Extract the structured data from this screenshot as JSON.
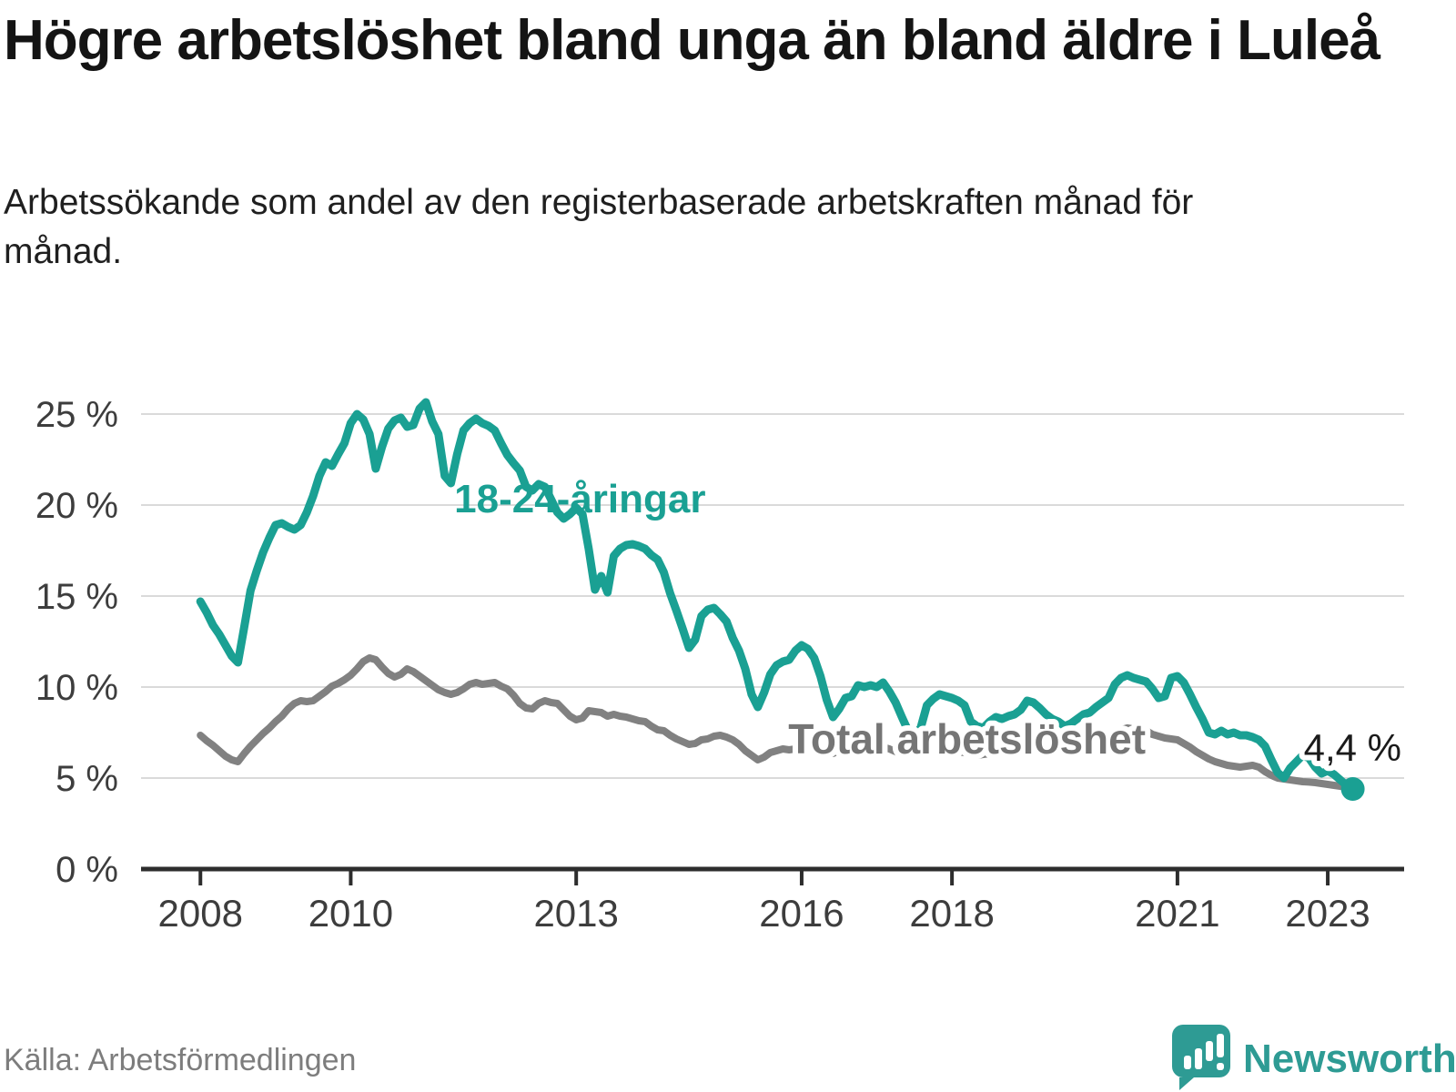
{
  "header": {
    "title": "Högre arbetslöshet bland unga än bland äldre i Luleå",
    "subtitle": "Arbetssökande som andel av den registerbaserade arbetskraften månad för månad."
  },
  "footer": {
    "source": "Källa: Arbetsförmedlingen",
    "brand": "Newsworthy"
  },
  "colors": {
    "youth_line": "#1AA093",
    "total_line": "#818181",
    "total_label": "#757575",
    "annotation_dark": "#1A1A1A",
    "grid": "#DADADA",
    "axis": "#2D2D2D",
    "tick_text": "#3D3D3D",
    "brand_teal": "#2E9B94",
    "background": "#FFFFFF"
  },
  "chart_data": {
    "type": "line",
    "title": "Högre arbetslöshet bland unga än bland äldre i Luleå",
    "xlabel": "",
    "ylabel": "Arbetssökande som andel av den registerbaserade arbetskraften",
    "unit": "%",
    "frequency": "monthly",
    "start": "2008-01",
    "end": "2023-05",
    "grid": true,
    "x_axis": {
      "range": [
        2007.21,
        2023.98
      ],
      "tick_years": [
        2008,
        2010,
        2013,
        2016,
        2018,
        2021,
        2023
      ],
      "tick_labels": [
        "2008",
        "2010",
        "2013",
        "2016",
        "2018",
        "2021",
        "2023"
      ]
    },
    "y_axis": {
      "range": [
        0,
        26.25
      ],
      "ticks": [
        0,
        5,
        10,
        15,
        20,
        25
      ],
      "tick_labels": [
        "0 %",
        "5 %",
        "10 %",
        "15 %",
        "20 %",
        "25 %"
      ]
    },
    "series": [
      {
        "name": "Total arbetslöshet",
        "color": "#818181",
        "stroke_width": 8,
        "values": [
          7.35,
          7.05,
          6.8,
          6.5,
          6.2,
          6.0,
          5.9,
          6.35,
          6.75,
          7.1,
          7.45,
          7.75,
          8.1,
          8.4,
          8.8,
          9.1,
          9.25,
          9.2,
          9.25,
          9.5,
          9.75,
          10.05,
          10.2,
          10.4,
          10.65,
          11.0,
          11.4,
          11.6,
          11.5,
          11.1,
          10.75,
          10.55,
          10.7,
          11.0,
          10.85,
          10.6,
          10.35,
          10.1,
          9.85,
          9.7,
          9.6,
          9.7,
          9.9,
          10.15,
          10.25,
          10.15,
          10.2,
          10.25,
          10.05,
          9.9,
          9.55,
          9.1,
          8.85,
          8.8,
          9.1,
          9.25,
          9.15,
          9.1,
          8.75,
          8.4,
          8.2,
          8.3,
          8.7,
          8.65,
          8.6,
          8.4,
          8.5,
          8.4,
          8.35,
          8.25,
          8.15,
          8.1,
          7.85,
          7.65,
          7.6,
          7.35,
          7.15,
          7.0,
          6.85,
          6.9,
          7.1,
          7.15,
          7.3,
          7.35,
          7.25,
          7.1,
          6.85,
          6.5,
          6.25,
          6.0,
          6.15,
          6.4,
          6.5,
          6.6,
          6.55,
          6.6,
          6.9,
          6.85,
          6.7,
          6.5,
          6.4,
          6.35,
          6.5,
          6.6,
          6.65,
          6.7,
          6.65,
          6.7,
          6.75,
          6.7,
          6.6,
          6.45,
          6.35,
          6.3,
          6.35,
          6.45,
          6.5,
          6.55,
          6.5,
          6.5,
          6.5,
          6.45,
          6.4,
          6.3,
          6.25,
          6.3,
          6.35,
          6.4,
          6.45,
          6.5,
          6.55,
          6.6,
          6.65,
          6.6,
          6.55,
          6.5,
          6.55,
          6.6,
          6.65,
          6.7,
          6.8,
          6.9,
          7.0,
          7.1,
          7.2,
          7.3,
          7.5,
          7.65,
          7.75,
          7.7,
          7.65,
          7.6,
          7.4,
          7.3,
          7.2,
          7.15,
          7.1,
          6.9,
          6.7,
          6.45,
          6.25,
          6.05,
          5.9,
          5.8,
          5.7,
          5.65,
          5.6,
          5.65,
          5.7,
          5.6,
          5.35,
          5.15,
          5.0,
          4.95,
          4.9,
          4.85,
          4.8,
          4.78,
          4.75,
          4.7,
          4.65,
          4.6,
          4.55,
          4.5,
          4.5
        ]
      },
      {
        "name": "18-24-åringar",
        "color": "#1AA093",
        "stroke_width": 9,
        "end_marker_radius": 13,
        "values": [
          14.7,
          14.1,
          13.4,
          12.9,
          12.3,
          11.7,
          11.35,
          13.3,
          15.3,
          16.4,
          17.4,
          18.2,
          18.9,
          19.0,
          18.8,
          18.65,
          18.9,
          19.6,
          20.5,
          21.6,
          22.35,
          22.15,
          22.8,
          23.4,
          24.5,
          25.0,
          24.7,
          23.9,
          22.0,
          23.2,
          24.2,
          24.65,
          24.8,
          24.3,
          24.4,
          25.3,
          25.65,
          24.6,
          23.9,
          21.6,
          21.2,
          22.8,
          24.1,
          24.5,
          24.75,
          24.5,
          24.35,
          24.1,
          23.4,
          22.75,
          22.3,
          21.9,
          21.0,
          20.8,
          21.15,
          21.0,
          20.3,
          19.6,
          19.25,
          19.5,
          19.85,
          19.5,
          17.6,
          15.35,
          16.1,
          15.2,
          17.2,
          17.6,
          17.8,
          17.85,
          17.75,
          17.6,
          17.25,
          17.0,
          16.3,
          15.15,
          14.2,
          13.2,
          12.15,
          12.6,
          13.9,
          14.25,
          14.35,
          14.0,
          13.6,
          12.7,
          12.0,
          11.0,
          9.6,
          8.9,
          9.7,
          10.7,
          11.2,
          11.4,
          11.5,
          12.0,
          12.3,
          12.1,
          11.6,
          10.6,
          9.3,
          8.35,
          8.8,
          9.4,
          9.5,
          10.1,
          10.0,
          10.1,
          10.0,
          10.25,
          9.75,
          9.15,
          8.35,
          7.6,
          7.35,
          7.75,
          9.0,
          9.35,
          9.6,
          9.5,
          9.4,
          9.25,
          9.0,
          8.1,
          7.85,
          7.75,
          8.1,
          8.35,
          8.25,
          8.4,
          8.5,
          8.75,
          9.25,
          9.15,
          8.85,
          8.5,
          8.25,
          8.1,
          7.85,
          8.0,
          8.25,
          8.5,
          8.6,
          8.9,
          9.15,
          9.4,
          10.15,
          10.5,
          10.65,
          10.5,
          10.4,
          10.3,
          9.9,
          9.4,
          9.5,
          10.5,
          10.6,
          10.25,
          9.6,
          8.9,
          8.25,
          7.5,
          7.4,
          7.6,
          7.4,
          7.5,
          7.35,
          7.35,
          7.25,
          7.1,
          6.75,
          6.0,
          5.3,
          5.0,
          5.55,
          5.9,
          6.25,
          6.1,
          5.6,
          5.25,
          5.4,
          5.2,
          4.9,
          4.6,
          4.4
        ]
      }
    ],
    "annotations": [
      {
        "id": "youth-series-label",
        "text": "18-24-åringar",
        "year": 2013.05,
        "value": 19.6,
        "color": "#1AA093",
        "size": 44,
        "bold": true,
        "halo": false
      },
      {
        "id": "total-series-label",
        "text": "Total arbetslöshet",
        "year": 2018.2,
        "value": 6.35,
        "color": "#757575",
        "size": 46,
        "bold": true,
        "halo": true
      },
      {
        "id": "end-value-label",
        "text": "4,4 %",
        "year": 2023.33,
        "value": 5.95,
        "color": "#1A1A1A",
        "size": 42,
        "bold": false,
        "halo": true
      }
    ],
    "legend": "inline-labels"
  }
}
